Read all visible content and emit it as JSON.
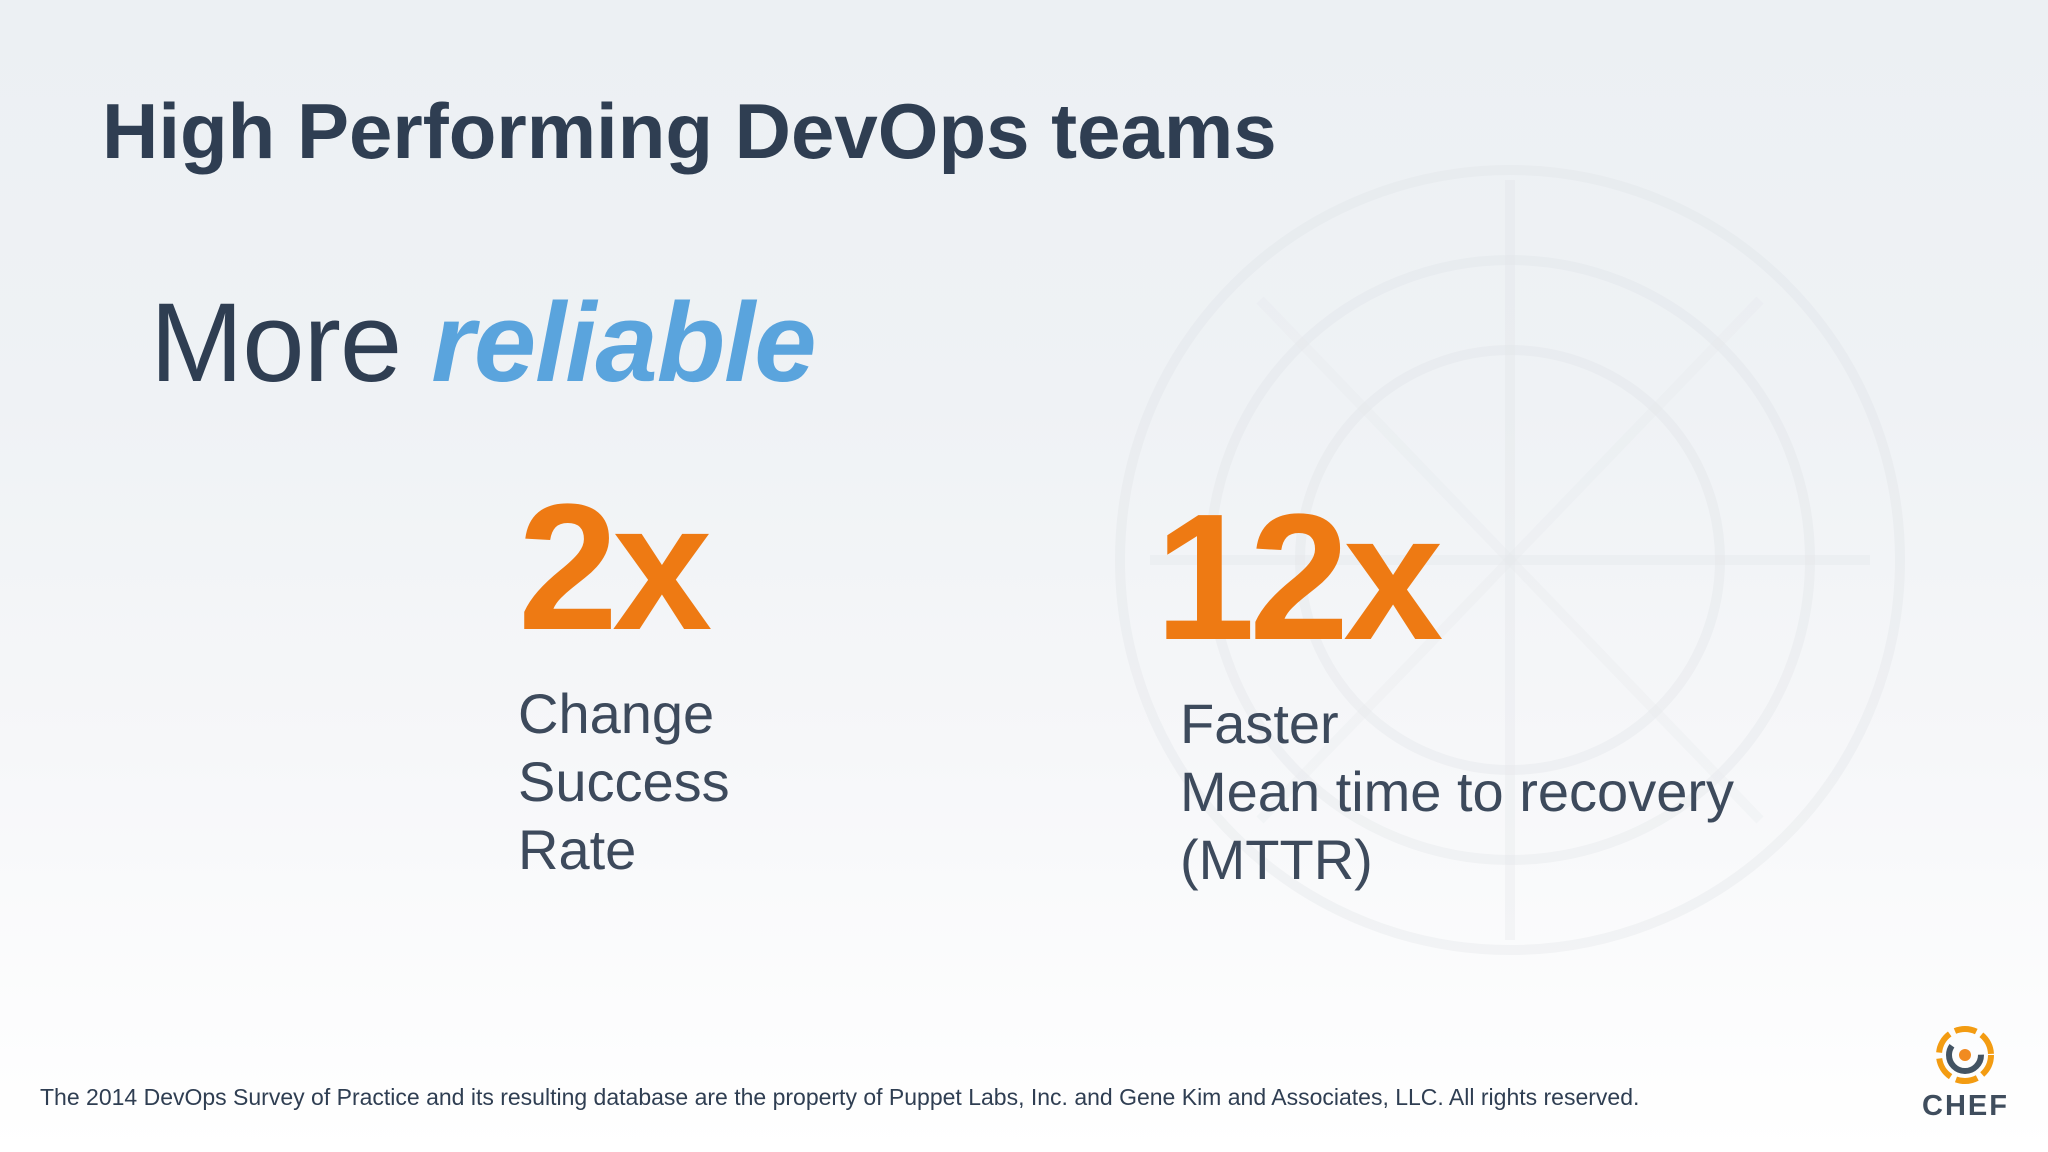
{
  "slide": {
    "title": "High Performing DevOps teams",
    "subtitle_plain": "More",
    "subtitle_accent": "reliable",
    "stats": [
      {
        "value": "2x",
        "label_lines": [
          "Change",
          "Success",
          "Rate"
        ]
      },
      {
        "value": "12x",
        "label_lines": [
          "Faster",
          "Mean time to recovery",
          "(MTTR)"
        ]
      }
    ],
    "footnote": "The 2014 DevOps Survey of Practice and its resulting database are the property of Puppet Labs, Inc. and Gene Kim and Associates, LLC. All rights reserved."
  },
  "logo": {
    "text": "CHEF",
    "icon": "chef-logo-icon"
  },
  "colors": {
    "heading": "#2f3e52",
    "accent_blue": "#5aa4dd",
    "accent_orange": "#ee7a13",
    "body_text": "#3d4a5c"
  }
}
